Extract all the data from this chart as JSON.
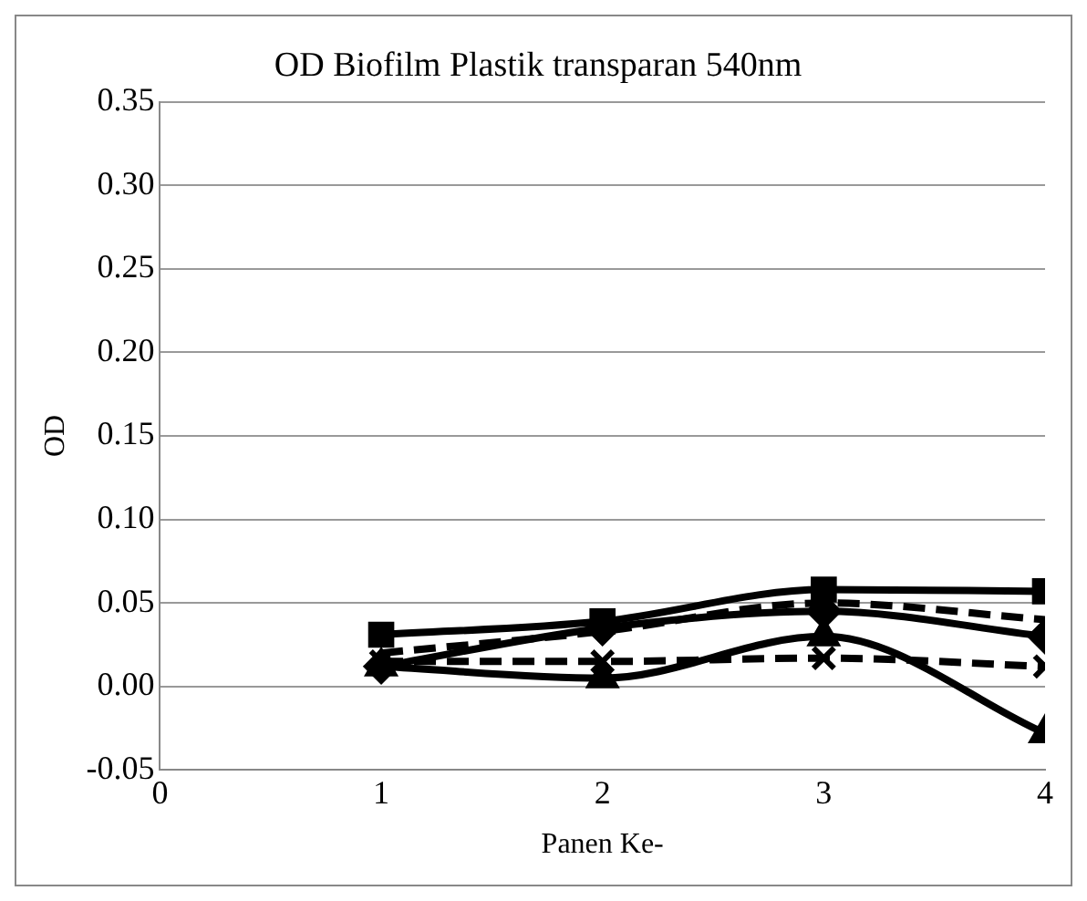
{
  "chart_data": {
    "type": "line",
    "title": "OD Biofilm Plastik transparan 540nm",
    "xlabel": "Panen Ke-",
    "ylabel": "OD",
    "x": [
      1,
      2,
      3,
      4
    ],
    "xlim": [
      0,
      4
    ],
    "xticks": [
      0,
      1,
      2,
      3,
      4
    ],
    "ylim": [
      -0.05,
      0.35
    ],
    "yticks": [
      -0.05,
      {
        "value": 0,
        "label": "0.00"
      },
      0.05,
      {
        "value": 0.1,
        "label": "0.10"
      },
      0.15,
      {
        "value": 0.2,
        "label": "0.20"
      },
      0.25,
      {
        "value": 0.3,
        "label": "0.30"
      },
      0.35
    ],
    "grid": "y",
    "legend": false,
    "series": [
      {
        "color": "#000000",
        "marker": "square",
        "line_style": "solid",
        "values": [
          0.031,
          0.039,
          0.058,
          0.057
        ]
      },
      {
        "color": "#000000",
        "marker": "none",
        "line_style": "dashed",
        "values": [
          0.02,
          0.033,
          0.05,
          0.04
        ]
      },
      {
        "color": "#000000",
        "marker": "diamond",
        "line_style": "solid",
        "values": [
          0.012,
          0.035,
          0.045,
          0.03
        ]
      },
      {
        "color": "#000000",
        "marker": "cross",
        "line_style": "dashed",
        "values": [
          0.015,
          0.015,
          0.017,
          0.012
        ]
      },
      {
        "color": "#000000",
        "marker": "triangle",
        "line_style": "solid",
        "values": [
          0.012,
          0.005,
          0.03,
          -0.028
        ]
      }
    ]
  }
}
